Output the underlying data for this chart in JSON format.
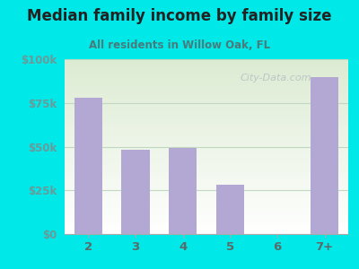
{
  "title": "Median family income by family size",
  "subtitle": "All residents in Willow Oak, FL",
  "categories": [
    "2",
    "3",
    "4",
    "5",
    "6",
    "7+"
  ],
  "values": [
    78000,
    48000,
    49000,
    28000,
    0,
    90000
  ],
  "bar_color": "#b3a8d4",
  "background_outer": "#00e8e8",
  "title_color": "#222222",
  "subtitle_color": "#4a7a7a",
  "ytick_color": "#6a9a9a",
  "xtick_color": "#5a6a6a",
  "ylim": [
    0,
    100000
  ],
  "yticks": [
    0,
    25000,
    50000,
    75000,
    100000
  ],
  "ytick_labels": [
    "$0",
    "$25k",
    "$50k",
    "$75k",
    "$100k"
  ],
  "grid_color": "#c0d8c0",
  "watermark": "City-Data.com"
}
